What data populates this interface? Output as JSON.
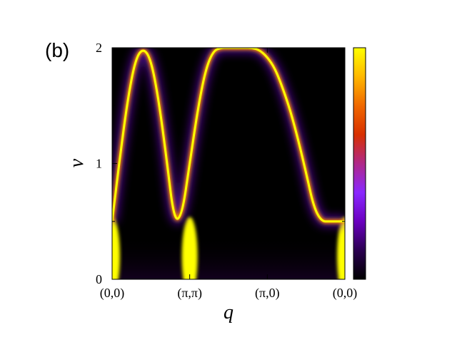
{
  "panel_label": "(b)",
  "chart_data": {
    "type": "heatmap",
    "title": "",
    "xlabel": "q",
    "ylabel": "ν",
    "x_ticks": [
      "(0,0)",
      "(π,π)",
      "(π,0)",
      "(0,0)"
    ],
    "y_ticks": [
      "0",
      "1",
      "2"
    ],
    "ylim": [
      0,
      2
    ],
    "colormap": [
      "#000000",
      "#2a0050",
      "#6a00c0",
      "#8a28ff",
      "#b02888",
      "#d83000",
      "#f06800",
      "#ffb800",
      "#ffff00"
    ],
    "colorbar": {
      "ticks": [],
      "position": "right"
    },
    "dispersion": {
      "note_segments": [
        "(0,0)-(π,π)",
        "(π,π)-(π,0)",
        "(π,0)-(0,0)"
      ],
      "x": [
        0.0,
        0.1,
        0.2,
        0.3,
        0.4,
        0.5,
        0.6,
        0.7,
        0.8,
        0.9,
        1.0,
        1.1,
        1.2,
        1.3,
        1.4,
        1.5,
        1.6,
        1.7,
        1.8,
        1.9,
        2.0,
        2.1,
        2.2,
        2.3,
        2.4,
        2.5,
        2.6,
        2.7,
        2.8,
        2.9,
        3.0
      ],
      "nu": [
        0.5,
        1.05,
        1.55,
        1.9,
        2.0,
        1.9,
        1.55,
        1.05,
        0.5,
        0.55,
        1.0,
        1.45,
        1.8,
        1.97,
        2.0,
        2.0,
        2.0,
        2.0,
        2.0,
        1.98,
        1.92,
        1.82,
        1.65,
        1.45,
        1.2,
        0.92,
        0.62,
        0.5,
        0.5,
        0.5,
        0.5
      ]
    }
  }
}
